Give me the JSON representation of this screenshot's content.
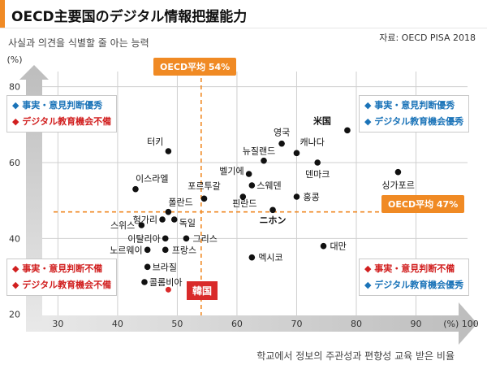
{
  "title": "OECD主要国のデジタル情報把握能力",
  "source": "자료: OECD PISA 2018",
  "colors": {
    "accent": "#f08a24",
    "blue": "#1a73b8",
    "red": "#d11f1f",
    "korea": "#d92a2a"
  },
  "legends": {
    "top_left": [
      "事実・意見判断優秀",
      "デジタル教育機会不備"
    ],
    "top_right": [
      "事実・意見判断優秀",
      "デジタル教育機会優秀"
    ],
    "bottom_left": [
      "事実・意見判断不備",
      "デジタル教育機会不備"
    ],
    "bottom_right": [
      "事実・意見判断不備",
      "デジタル教育機会優秀"
    ]
  },
  "oecd_avg_x_label": "OECD平均 54%",
  "oecd_avg_y_label": "OECD平均 47%",
  "korea_label": "韓国",
  "chart_data": {
    "type": "scatter",
    "title": "OECD主要国のデジタル情報把握能力",
    "xlabel": "학교에서 정보의 주관성과 편향성 교육 받은 비율",
    "ylabel": "사실과 의견을 식별할 줄 아는 능력",
    "xlim": [
      26,
      100
    ],
    "ylim": [
      18,
      84
    ],
    "x_ticks": [
      30,
      40,
      50,
      60,
      70,
      80,
      90
    ],
    "x_tick_labels": [
      "30",
      "40",
      "50",
      "60",
      "70",
      "80",
      "90"
    ],
    "x_end_label": "(%) 100",
    "y_ticks": [
      20,
      40,
      60,
      80
    ],
    "y_tick_labels": [
      "20",
      "40",
      "60",
      "80"
    ],
    "y_unit_label": "(%)",
    "oecd_average": {
      "x": 54,
      "y": 47
    },
    "points": [
      {
        "name": "米国",
        "x": 78.5,
        "y": 68.5
      },
      {
        "name": "영국",
        "x": 67.5,
        "y": 65
      },
      {
        "name": "캐나다",
        "x": 70,
        "y": 62.5
      },
      {
        "name": "뉴질랜드",
        "x": 64.5,
        "y": 60.5
      },
      {
        "name": "덴마크",
        "x": 73.5,
        "y": 60
      },
      {
        "name": "싱가포르",
        "x": 87,
        "y": 57.5
      },
      {
        "name": "벨기에",
        "x": 62,
        "y": 57
      },
      {
        "name": "스웨덴",
        "x": 62.5,
        "y": 54
      },
      {
        "name": "홍콩",
        "x": 70,
        "y": 51
      },
      {
        "name": "터키",
        "x": 48.5,
        "y": 63
      },
      {
        "name": "이스라엘",
        "x": 43,
        "y": 53
      },
      {
        "name": "포르투갈",
        "x": 54.5,
        "y": 50.5
      },
      {
        "name": "핀란드",
        "x": 61,
        "y": 51
      },
      {
        "name": "ニホン",
        "x": 66,
        "y": 47.5
      },
      {
        "name": "폴란드",
        "x": 48.5,
        "y": 47
      },
      {
        "name": "헝가리",
        "x": 47.5,
        "y": 45
      },
      {
        "name": "독일",
        "x": 49.5,
        "y": 45
      },
      {
        "name": "스위스",
        "x": 44,
        "y": 43.5
      },
      {
        "name": "이탈리아",
        "x": 48,
        "y": 40
      },
      {
        "name": "그리스",
        "x": 51.5,
        "y": 40
      },
      {
        "name": "노르웨이",
        "x": 45,
        "y": 37
      },
      {
        "name": "프랑스",
        "x": 48,
        "y": 37
      },
      {
        "name": "대만",
        "x": 74.5,
        "y": 38
      },
      {
        "name": "멕시코",
        "x": 62.5,
        "y": 35
      },
      {
        "name": "브라질",
        "x": 45,
        "y": 32.5
      },
      {
        "name": "콜롬비아",
        "x": 44.5,
        "y": 28.5
      },
      {
        "name": "韓国",
        "x": 48.5,
        "y": 26.5
      }
    ]
  }
}
